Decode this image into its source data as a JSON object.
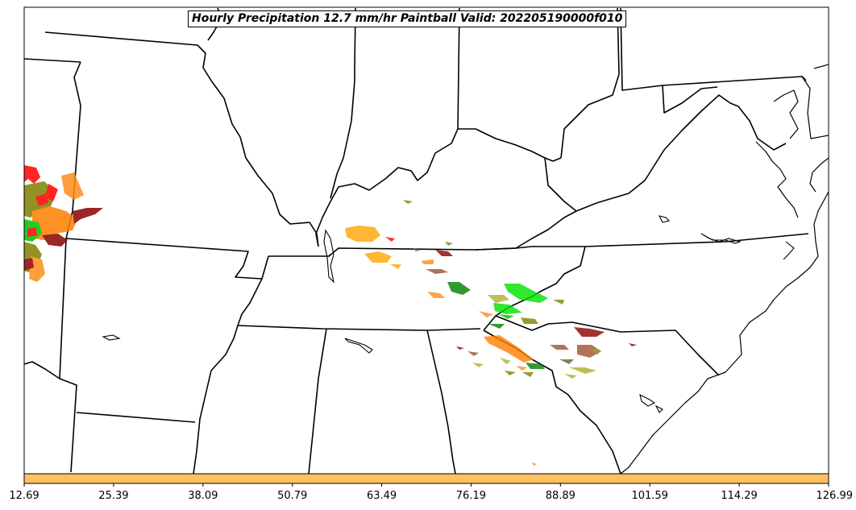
{
  "title": "Hourly Precipitation 12.7 mm/hr Paintball Valid: 202205190000f010",
  "colorbar": {
    "color": "#ffc061",
    "ticks": [
      "12.69",
      "25.39",
      "38.09",
      "50.79",
      "63.49",
      "76.19",
      "88.89",
      "101.59",
      "114.29",
      "126.99"
    ]
  },
  "map": {
    "region": "southeastern United States",
    "boundaries": "state lines and coastline",
    "precip_member_colors": [
      "#ff0000",
      "#ff7f00",
      "#8b0000",
      "#808000",
      "#00c000",
      "#008000",
      "#ff8c1a",
      "#ffa500",
      "#556b2f",
      "#b0b030",
      "#00e000",
      "#a0522d"
    ]
  }
}
